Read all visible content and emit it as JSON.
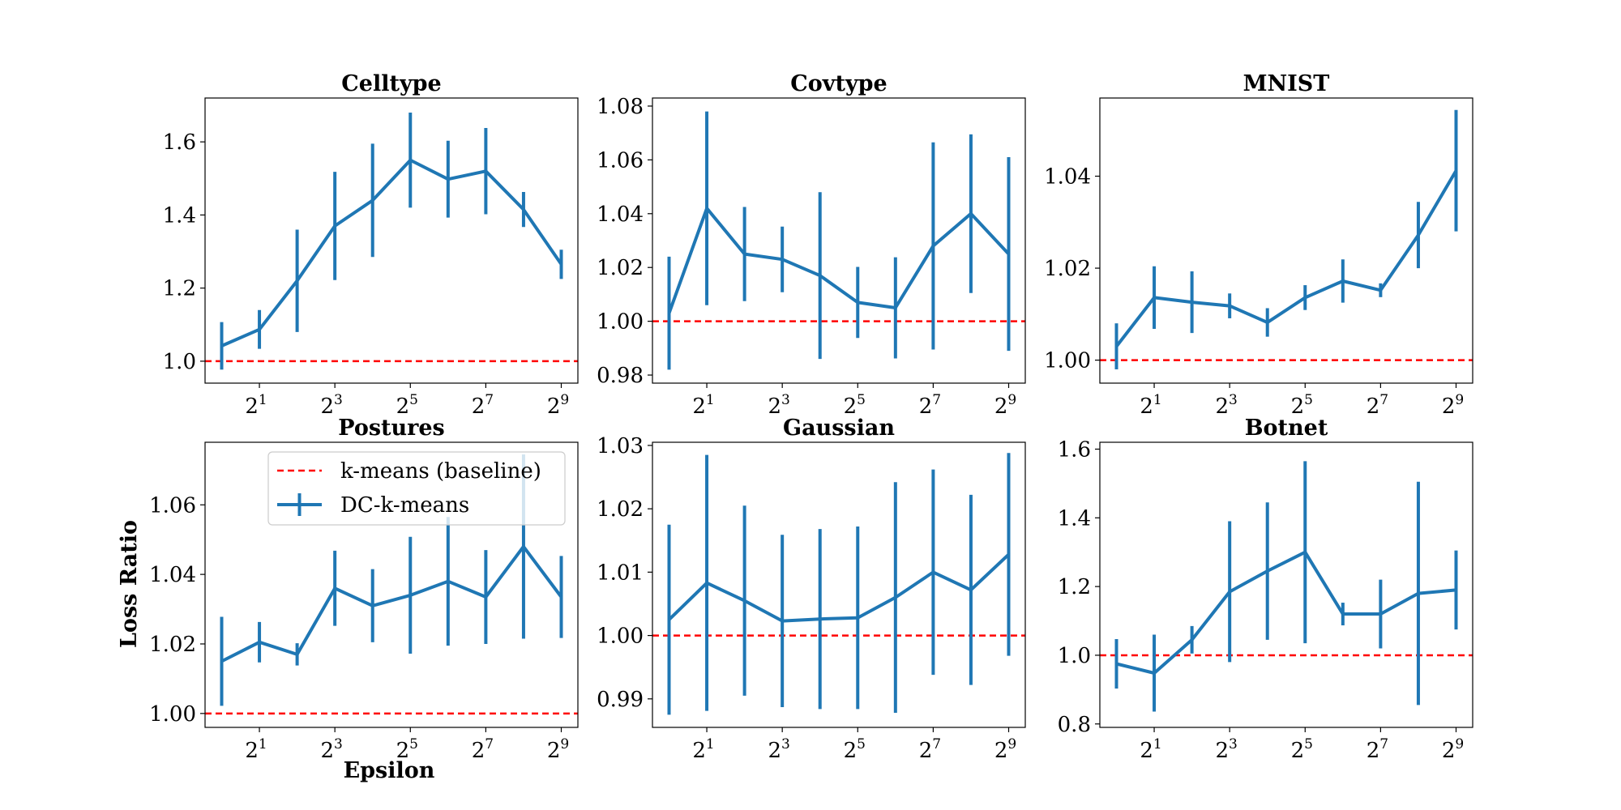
{
  "figure": {
    "ylabel": "Loss Ratio",
    "xlabel": "Epsilon",
    "colors": {
      "series": "#1f77b4",
      "baseline": "#ff0000"
    },
    "legend": {
      "placement": "upper-right of Postures panel",
      "entries": [
        {
          "label": "k-means (baseline)",
          "style": "dashed",
          "color": "#ff0000"
        },
        {
          "label": "DC-k-means",
          "style": "errorbar",
          "color": "#1f77b4"
        }
      ]
    }
  },
  "chart_data": [
    {
      "type": "line",
      "title": "Celltype",
      "x": [
        1,
        2,
        4,
        8,
        16,
        32,
        64,
        128,
        256,
        512
      ],
      "x_scale": "log2",
      "xtick_base": "2",
      "xtick_exponents": [
        "1",
        "3",
        "5",
        "7",
        "9"
      ],
      "xtick_values": [
        2,
        8,
        32,
        128,
        512
      ],
      "ylim": [
        0.94,
        1.72
      ],
      "yticks": [
        1.0,
        1.2,
        1.4,
        1.6
      ],
      "ytick_labels": [
        "1.0",
        "1.2",
        "1.4",
        "1.6"
      ],
      "baseline": 1.0,
      "series": [
        {
          "name": "DC-k-means",
          "values": [
            1.042,
            1.087,
            1.22,
            1.37,
            1.44,
            1.55,
            1.498,
            1.52,
            1.415,
            1.265
          ],
          "errors": [
            0.065,
            0.053,
            0.14,
            0.148,
            0.155,
            0.13,
            0.105,
            0.118,
            0.048,
            0.04
          ]
        }
      ]
    },
    {
      "type": "line",
      "title": "Covtype",
      "x": [
        1,
        2,
        4,
        8,
        16,
        32,
        64,
        128,
        256,
        512
      ],
      "x_scale": "log2",
      "xtick_base": "2",
      "xtick_exponents": [
        "1",
        "3",
        "5",
        "7",
        "9"
      ],
      "xtick_values": [
        2,
        8,
        32,
        128,
        512
      ],
      "ylim": [
        0.977,
        1.083
      ],
      "yticks": [
        0.98,
        1.0,
        1.02,
        1.04,
        1.06,
        1.08
      ],
      "ytick_labels": [
        "0.98",
        "1.00",
        "1.02",
        "1.04",
        "1.06",
        "1.08"
      ],
      "baseline": 1.0,
      "series": [
        {
          "name": "DC-k-means",
          "values": [
            1.003,
            1.042,
            1.025,
            1.023,
            1.017,
            1.007,
            1.005,
            1.028,
            1.04,
            1.025
          ],
          "errors": [
            0.021,
            0.036,
            0.0175,
            0.0122,
            0.031,
            0.0132,
            0.0188,
            0.0385,
            0.0295,
            0.036
          ]
        }
      ]
    },
    {
      "type": "line",
      "title": "MNIST",
      "x": [
        1,
        2,
        4,
        8,
        16,
        32,
        64,
        128,
        256,
        512
      ],
      "x_scale": "log2",
      "xtick_base": "2",
      "xtick_exponents": [
        "1",
        "3",
        "5",
        "7",
        "9"
      ],
      "xtick_values": [
        2,
        8,
        32,
        128,
        512
      ],
      "ylim": [
        0.995,
        1.057
      ],
      "yticks": [
        1.0,
        1.02,
        1.04
      ],
      "ytick_labels": [
        "1.00",
        "1.02",
        "1.04"
      ],
      "baseline": 1.0,
      "series": [
        {
          "name": "DC-k-means",
          "values": [
            1.003,
            1.0136,
            1.0126,
            1.0118,
            1.0082,
            1.0136,
            1.0172,
            1.0152,
            1.0272,
            1.0412
          ],
          "errors": [
            0.005,
            0.0068,
            0.0067,
            0.0027,
            0.0031,
            0.0027,
            0.0047,
            0.0015,
            0.0072,
            0.0132
          ]
        }
      ]
    },
    {
      "type": "line",
      "title": "Postures",
      "x": [
        1,
        2,
        4,
        8,
        16,
        32,
        64,
        128,
        256,
        512
      ],
      "x_scale": "log2",
      "xtick_base": "2",
      "xtick_exponents": [
        "1",
        "3",
        "5",
        "7",
        "9"
      ],
      "xtick_values": [
        2,
        8,
        32,
        128,
        512
      ],
      "ylim": [
        0.996,
        1.078
      ],
      "yticks": [
        1.0,
        1.02,
        1.04,
        1.06
      ],
      "ytick_labels": [
        "1.00",
        "1.02",
        "1.04",
        "1.06"
      ],
      "baseline": 1.0,
      "series": [
        {
          "name": "DC-k-means",
          "values": [
            1.015,
            1.0205,
            1.017,
            1.036,
            1.031,
            1.034,
            1.038,
            1.0335,
            1.048,
            1.0335
          ],
          "errors": [
            0.0128,
            0.0058,
            0.0032,
            0.0108,
            0.0105,
            0.0168,
            0.0185,
            0.0135,
            0.0265,
            0.0118
          ]
        }
      ]
    },
    {
      "type": "line",
      "title": "Gaussian",
      "x": [
        1,
        2,
        4,
        8,
        16,
        32,
        64,
        128,
        256,
        512
      ],
      "x_scale": "log2",
      "xtick_base": "2",
      "xtick_exponents": [
        "1",
        "3",
        "5",
        "7",
        "9"
      ],
      "xtick_values": [
        2,
        8,
        32,
        128,
        512
      ],
      "ylim": [
        0.9855,
        1.0305
      ],
      "yticks": [
        0.99,
        1.0,
        1.01,
        1.02,
        1.03
      ],
      "ytick_labels": [
        "0.99",
        "1.00",
        "1.01",
        "1.02",
        "1.03"
      ],
      "baseline": 1.0,
      "series": [
        {
          "name": "DC-k-means",
          "values": [
            1.0025,
            1.0083,
            1.0055,
            1.0023,
            1.0026,
            1.0028,
            1.006,
            1.01,
            1.0072,
            1.0128
          ],
          "errors": [
            0.015,
            0.0202,
            0.015,
            0.0136,
            0.0142,
            0.0144,
            0.0182,
            0.0162,
            0.015,
            0.016
          ]
        }
      ]
    },
    {
      "type": "line",
      "title": "Botnet",
      "x": [
        1,
        2,
        4,
        8,
        16,
        32,
        64,
        128,
        256,
        512
      ],
      "x_scale": "log2",
      "xtick_base": "2",
      "xtick_exponents": [
        "1",
        "3",
        "5",
        "7",
        "9"
      ],
      "xtick_values": [
        2,
        8,
        32,
        128,
        512
      ],
      "ylim": [
        0.79,
        1.62
      ],
      "yticks": [
        0.8,
        1.0,
        1.2,
        1.4,
        1.6
      ],
      "ytick_labels": [
        "0.8",
        "1.0",
        "1.2",
        "1.4",
        "1.6"
      ],
      "baseline": 1.0,
      "series": [
        {
          "name": "DC-k-means",
          "values": [
            0.975,
            0.948,
            1.045,
            1.185,
            1.245,
            1.3,
            1.12,
            1.12,
            1.18,
            1.19
          ],
          "errors": [
            0.072,
            0.112,
            0.04,
            0.205,
            0.2,
            0.265,
            0.033,
            0.1,
            0.325,
            0.115
          ]
        }
      ]
    }
  ]
}
